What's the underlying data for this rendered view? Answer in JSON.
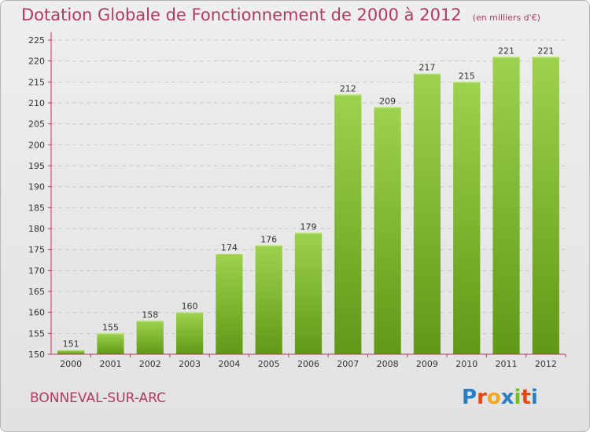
{
  "title": "Dotation Globale de Fonctionnement de 2000 à 2012",
  "subtitle": "(en milliers d'€)",
  "place": "BONNEVAL-SUR-ARC",
  "logo": {
    "text": "Proxiti",
    "letters": [
      {
        "ch": "P",
        "color": "#2a7fc4"
      },
      {
        "ch": "r",
        "color": "#e04a1a"
      },
      {
        "ch": "o",
        "color": "#f0a81c"
      },
      {
        "ch": "x",
        "color": "#2a7fc4"
      },
      {
        "ch": "i",
        "color": "#7ab828"
      },
      {
        "ch": "t",
        "color": "#e04a1a"
      },
      {
        "ch": "i",
        "color": "#2a7fc4"
      }
    ]
  },
  "colors": {
    "accent": "#b03a63",
    "bar_top": "#9ed24e",
    "bar_bottom": "#5f9915",
    "axis": "#b03a63"
  },
  "chart_data": {
    "type": "bar",
    "title": "Dotation Globale de Fonctionnement de 2000 à 2012",
    "subtitle": "(en milliers d'€)",
    "xlabel": "",
    "ylabel": "",
    "categories": [
      "2000",
      "2001",
      "2002",
      "2003",
      "2004",
      "2005",
      "2006",
      "2007",
      "2008",
      "2009",
      "2010",
      "2011",
      "2012"
    ],
    "values": [
      151,
      155,
      158,
      160,
      174,
      176,
      179,
      212,
      209,
      217,
      215,
      221,
      221
    ],
    "ylim": [
      150,
      225
    ],
    "yticks": [
      150,
      155,
      160,
      165,
      170,
      175,
      180,
      185,
      190,
      195,
      200,
      205,
      210,
      215,
      220,
      225
    ],
    "grid": true,
    "legend": "none"
  }
}
